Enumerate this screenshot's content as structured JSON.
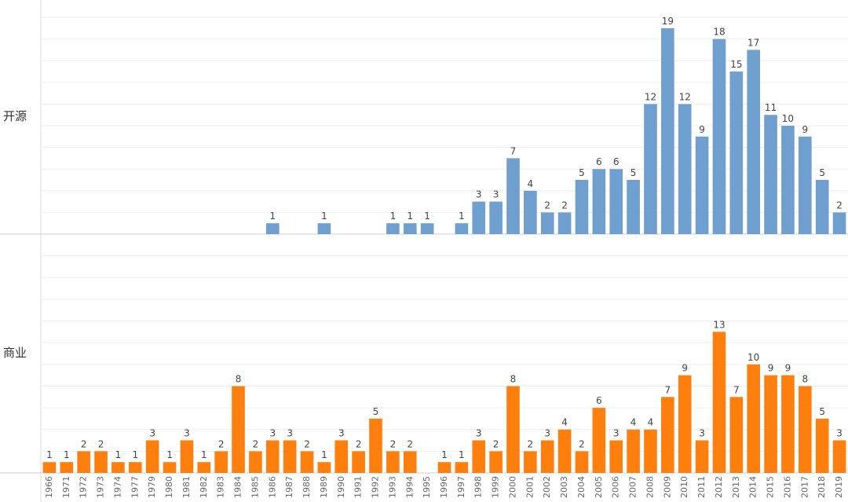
{
  "chart_data": {
    "type": "bar",
    "grid": true,
    "categories": [
      "1966",
      "1971",
      "1972",
      "1973",
      "1974",
      "1977",
      "1979",
      "1980",
      "1981",
      "1982",
      "1983",
      "1984",
      "1985",
      "1986",
      "1987",
      "1988",
      "1989",
      "1990",
      "1991",
      "1992",
      "1993",
      "1994",
      "1995",
      "1996",
      "1997",
      "1998",
      "1999",
      "2000",
      "2001",
      "2002",
      "2003",
      "2004",
      "2005",
      "2006",
      "2007",
      "2008",
      "2009",
      "2010",
      "2011",
      "2012",
      "2013",
      "2014",
      "2015",
      "2016",
      "2017",
      "2018",
      "2019"
    ],
    "series": [
      {
        "name": "开源",
        "color": "#6f9fcf",
        "ylim": [
          0,
          21.6
        ],
        "yticks": [
          0,
          2,
          4,
          6,
          8,
          10,
          12,
          14,
          16,
          18,
          20
        ],
        "values": [
          null,
          null,
          null,
          null,
          null,
          null,
          null,
          null,
          null,
          null,
          null,
          null,
          null,
          1,
          null,
          null,
          1,
          null,
          null,
          null,
          1,
          1,
          1,
          null,
          1,
          3,
          3,
          7,
          4,
          2,
          2,
          5,
          6,
          6,
          5,
          12,
          19,
          12,
          9,
          18,
          15,
          17,
          11,
          10,
          9,
          5,
          2
        ]
      },
      {
        "name": "商业",
        "color": "#ff7f0e",
        "ylim": [
          0,
          22
        ],
        "yticks": [
          0,
          2,
          4,
          6,
          8,
          10,
          12,
          14,
          16,
          18,
          20
        ],
        "values": [
          1,
          1,
          2,
          2,
          1,
          1,
          3,
          1,
          3,
          1,
          2,
          8,
          2,
          3,
          3,
          2,
          1,
          3,
          2,
          5,
          2,
          2,
          null,
          1,
          1,
          3,
          2,
          8,
          2,
          3,
          4,
          2,
          6,
          3,
          4,
          4,
          7,
          9,
          3,
          13,
          7,
          10,
          9,
          9,
          8,
          5,
          3
        ]
      }
    ]
  }
}
